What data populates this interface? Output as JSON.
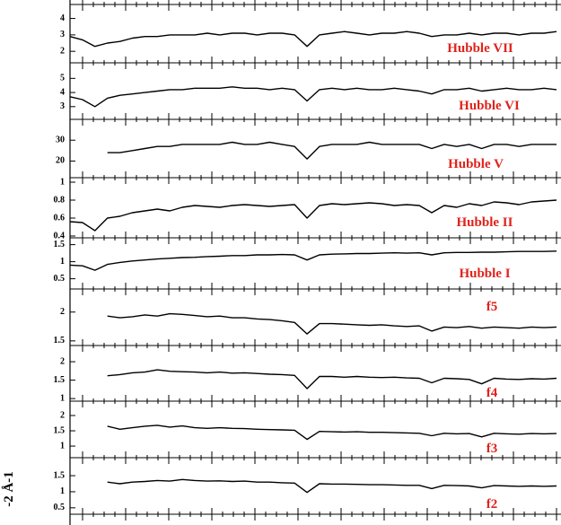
{
  "y_label": "-2 Å-1",
  "chart_data": [
    {
      "type": "line",
      "label": "Hubble VII",
      "color": "#000000",
      "label_color": "#e0231c",
      "ylim": [
        1.3,
        4.85
      ],
      "yticks": [
        2,
        3,
        4
      ],
      "values": [
        2.9,
        2.7,
        2.3,
        2.5,
        2.6,
        2.8,
        2.9,
        2.9,
        3.0,
        3.0,
        3.0,
        3.1,
        3.0,
        3.1,
        3.1,
        3.0,
        3.1,
        3.1,
        3.0,
        2.3,
        3.0,
        3.1,
        3.2,
        3.1,
        3.0,
        3.1,
        3.1,
        3.2,
        3.1,
        2.9,
        3.0,
        3.0,
        3.1,
        3.0,
        3.1,
        3.1,
        3.0,
        3.1,
        3.1,
        3.2
      ]
    },
    {
      "type": "line",
      "label": "Hubble VI",
      "color": "#000000",
      "label_color": "#e0231c",
      "ylim": [
        2.1,
        6.1
      ],
      "yticks": [
        3,
        4,
        5
      ],
      "values": [
        3.7,
        3.5,
        3.0,
        3.6,
        3.8,
        3.9,
        4.0,
        4.1,
        4.2,
        4.2,
        4.3,
        4.3,
        4.3,
        4.4,
        4.3,
        4.3,
        4.2,
        4.3,
        4.2,
        3.4,
        4.2,
        4.3,
        4.2,
        4.3,
        4.2,
        4.2,
        4.3,
        4.2,
        4.1,
        3.9,
        4.2,
        4.2,
        4.3,
        4.1,
        4.2,
        4.3,
        4.2,
        4.2,
        4.3,
        4.2
      ]
    },
    {
      "type": "line",
      "label": "Hubble V",
      "color": "#000000",
      "label_color": "#e0231c",
      "ylim": [
        12,
        40
      ],
      "yticks": [
        20,
        30
      ],
      "values": [
        null,
        null,
        null,
        24,
        24,
        25,
        26,
        27,
        27,
        28,
        28,
        28,
        28,
        29,
        28,
        28,
        29,
        28,
        27,
        21,
        27,
        28,
        28,
        28,
        29,
        28,
        28,
        28,
        28,
        26,
        28,
        27,
        28,
        26,
        28,
        28,
        27,
        28,
        28,
        28
      ]
    },
    {
      "type": "line",
      "label": "Hubble II",
      "color": "#000000",
      "label_color": "#e0231c",
      "ylim": [
        0.38,
        1.05
      ],
      "yticks": [
        0.4,
        0.6,
        0.8,
        1
      ],
      "values": [
        0.56,
        0.55,
        0.46,
        0.6,
        0.62,
        0.66,
        0.68,
        0.7,
        0.68,
        0.72,
        0.74,
        0.73,
        0.72,
        0.74,
        0.75,
        0.74,
        0.73,
        0.74,
        0.75,
        0.6,
        0.74,
        0.76,
        0.75,
        0.76,
        0.77,
        0.76,
        0.74,
        0.75,
        0.74,
        0.66,
        0.74,
        0.72,
        0.76,
        0.74,
        0.78,
        0.77,
        0.75,
        0.78,
        0.79,
        0.8
      ]
    },
    {
      "type": "line",
      "label": "Hubble I",
      "color": "#000000",
      "label_color": "#e0231c",
      "ylim": [
        0.2,
        1.7
      ],
      "yticks": [
        0.5,
        1,
        1.5
      ],
      "values": [
        0.9,
        0.88,
        0.75,
        0.92,
        0.98,
        1.02,
        1.05,
        1.08,
        1.1,
        1.12,
        1.13,
        1.15,
        1.16,
        1.18,
        1.18,
        1.2,
        1.2,
        1.21,
        1.2,
        1.05,
        1.2,
        1.22,
        1.23,
        1.24,
        1.24,
        1.25,
        1.26,
        1.25,
        1.26,
        1.2,
        1.26,
        1.27,
        1.27,
        1.28,
        1.28,
        1.29,
        1.3,
        1.3,
        1.3,
        1.31
      ]
    },
    {
      "type": "line",
      "label": "f5",
      "color": "#000000",
      "label_color": "#e0231c",
      "ylim": [
        1.42,
        2.4
      ],
      "yticks": [
        1.5,
        2
      ],
      "values": [
        null,
        null,
        null,
        1.93,
        1.9,
        1.92,
        1.95,
        1.93,
        1.97,
        1.96,
        1.94,
        1.92,
        1.93,
        1.9,
        1.9,
        1.88,
        1.87,
        1.85,
        1.82,
        1.62,
        1.8,
        1.8,
        1.79,
        1.78,
        1.77,
        1.78,
        1.76,
        1.75,
        1.76,
        1.67,
        1.74,
        1.73,
        1.75,
        1.72,
        1.74,
        1.73,
        1.72,
        1.74,
        1.73,
        1.74
      ]
    },
    {
      "type": "line",
      "label": "f4",
      "color": "#000000",
      "label_color": "#e0231c",
      "ylim": [
        0.93,
        2.44
      ],
      "yticks": [
        1,
        1.5,
        2
      ],
      "values": [
        null,
        null,
        null,
        1.62,
        1.65,
        1.7,
        1.72,
        1.78,
        1.74,
        1.73,
        1.72,
        1.7,
        1.72,
        1.69,
        1.7,
        1.68,
        1.66,
        1.65,
        1.63,
        1.27,
        1.6,
        1.6,
        1.58,
        1.6,
        1.58,
        1.57,
        1.58,
        1.56,
        1.55,
        1.43,
        1.55,
        1.54,
        1.52,
        1.4,
        1.55,
        1.53,
        1.52,
        1.54,
        1.53,
        1.55
      ]
    },
    {
      "type": "line",
      "label": "f3",
      "color": "#000000",
      "label_color": "#e0231c",
      "ylim": [
        0.62,
        2.47
      ],
      "yticks": [
        1,
        1.5,
        2
      ],
      "values": [
        null,
        null,
        null,
        1.65,
        1.55,
        1.6,
        1.65,
        1.68,
        1.62,
        1.66,
        1.6,
        1.58,
        1.6,
        1.58,
        1.57,
        1.55,
        1.54,
        1.53,
        1.52,
        1.22,
        1.48,
        1.47,
        1.46,
        1.47,
        1.45,
        1.45,
        1.44,
        1.43,
        1.42,
        1.34,
        1.42,
        1.4,
        1.41,
        1.3,
        1.42,
        1.4,
        1.39,
        1.41,
        1.4,
        1.41
      ]
    },
    {
      "type": "line",
      "label": "f2",
      "color": "#000000",
      "label_color": "#e0231c",
      "ylim": [
        0.3,
        2.06
      ],
      "yticks": [
        0.5,
        1,
        1.5
      ],
      "values": [
        null,
        null,
        null,
        1.3,
        1.25,
        1.3,
        1.32,
        1.35,
        1.33,
        1.38,
        1.35,
        1.33,
        1.34,
        1.32,
        1.33,
        1.3,
        1.3,
        1.28,
        1.27,
        0.98,
        1.25,
        1.24,
        1.24,
        1.23,
        1.22,
        1.22,
        1.21,
        1.2,
        1.2,
        1.1,
        1.2,
        1.19,
        1.18,
        1.12,
        1.19,
        1.18,
        1.17,
        1.18,
        1.17,
        1.18
      ]
    }
  ]
}
